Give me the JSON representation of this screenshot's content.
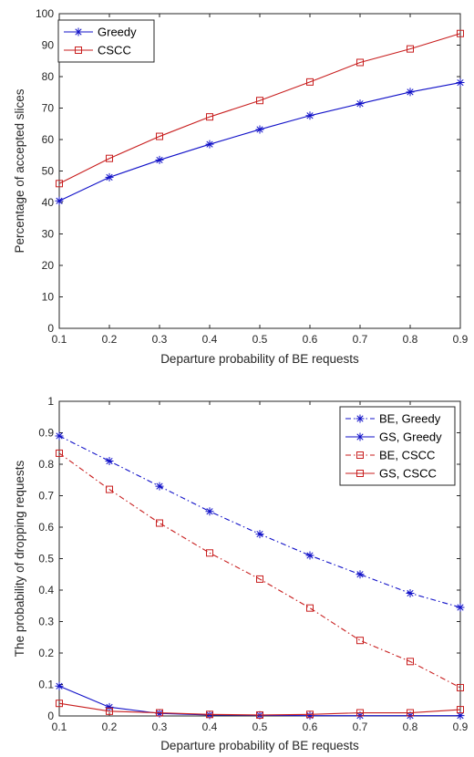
{
  "chart_data": [
    {
      "type": "line",
      "title": "",
      "xlabel": "Departure probability of BE requests",
      "ylabel": "Percentage of accepted slices",
      "xlim": [
        0.1,
        0.9
      ],
      "ylim": [
        0,
        100
      ],
      "x": [
        0.1,
        0.2,
        0.3,
        0.4,
        0.5,
        0.6,
        0.7,
        0.8,
        0.9
      ],
      "x_tick_labels": [
        "0.1",
        "0.2",
        "0.3",
        "0.4",
        "0.5",
        "0.6",
        "0.7",
        "0.8",
        "0.9"
      ],
      "y_tick_labels": [
        "0",
        "10",
        "20",
        "30",
        "40",
        "50",
        "60",
        "70",
        "80",
        "90",
        "100"
      ],
      "grid": false,
      "legend_position": "top-left",
      "series": [
        {
          "name": "Greedy",
          "color": "#1010c8",
          "line_style": "solid",
          "marker": "asterisk",
          "values": [
            40.5,
            48,
            53.5,
            58.5,
            63.2,
            67.6,
            71.4,
            75.1,
            78.1
          ]
        },
        {
          "name": "CSCC",
          "color": "#c81e1e",
          "line_style": "solid",
          "marker": "square",
          "values": [
            46,
            54,
            61,
            67.2,
            72.4,
            78.3,
            84.5,
            88.8,
            93.7
          ]
        }
      ]
    },
    {
      "type": "line",
      "title": "",
      "xlabel": "Departure probability of BE requests",
      "ylabel": "The probability of dropping requests",
      "xlim": [
        0.1,
        0.9
      ],
      "ylim": [
        0,
        1
      ],
      "x": [
        0.1,
        0.2,
        0.3,
        0.4,
        0.5,
        0.6,
        0.7,
        0.8,
        0.9
      ],
      "x_tick_labels": [
        "0.1",
        "0.2",
        "0.3",
        "0.4",
        "0.5",
        "0.6",
        "0.7",
        "0.8",
        "0.9"
      ],
      "y_tick_labels": [
        "0",
        "0.1",
        "0.2",
        "0.3",
        "0.4",
        "0.5",
        "0.6",
        "0.7",
        "0.8",
        "0.9",
        "1"
      ],
      "grid": false,
      "legend_position": "top-right",
      "series": [
        {
          "name": "BE, Greedy",
          "color": "#1010c8",
          "line_style": "dashdot",
          "marker": "asterisk",
          "values": [
            0.89,
            0.81,
            0.73,
            0.65,
            0.578,
            0.51,
            0.45,
            0.39,
            0.345
          ]
        },
        {
          "name": "GS, Greedy",
          "color": "#1010c8",
          "line_style": "solid",
          "marker": "asterisk",
          "values": [
            0.095,
            0.028,
            0.008,
            0.003,
            0.002,
            0.001,
            0.001,
            0.001,
            0.001
          ]
        },
        {
          "name": "BE, CSCC",
          "color": "#c81e1e",
          "line_style": "dashdot",
          "marker": "square",
          "values": [
            0.835,
            0.72,
            0.613,
            0.518,
            0.435,
            0.343,
            0.24,
            0.173,
            0.09
          ]
        },
        {
          "name": "GS, CSCC",
          "color": "#c81e1e",
          "line_style": "solid",
          "marker": "square",
          "values": [
            0.04,
            0.015,
            0.01,
            0.005,
            0.003,
            0.005,
            0.01,
            0.01,
            0.02
          ]
        }
      ]
    }
  ]
}
